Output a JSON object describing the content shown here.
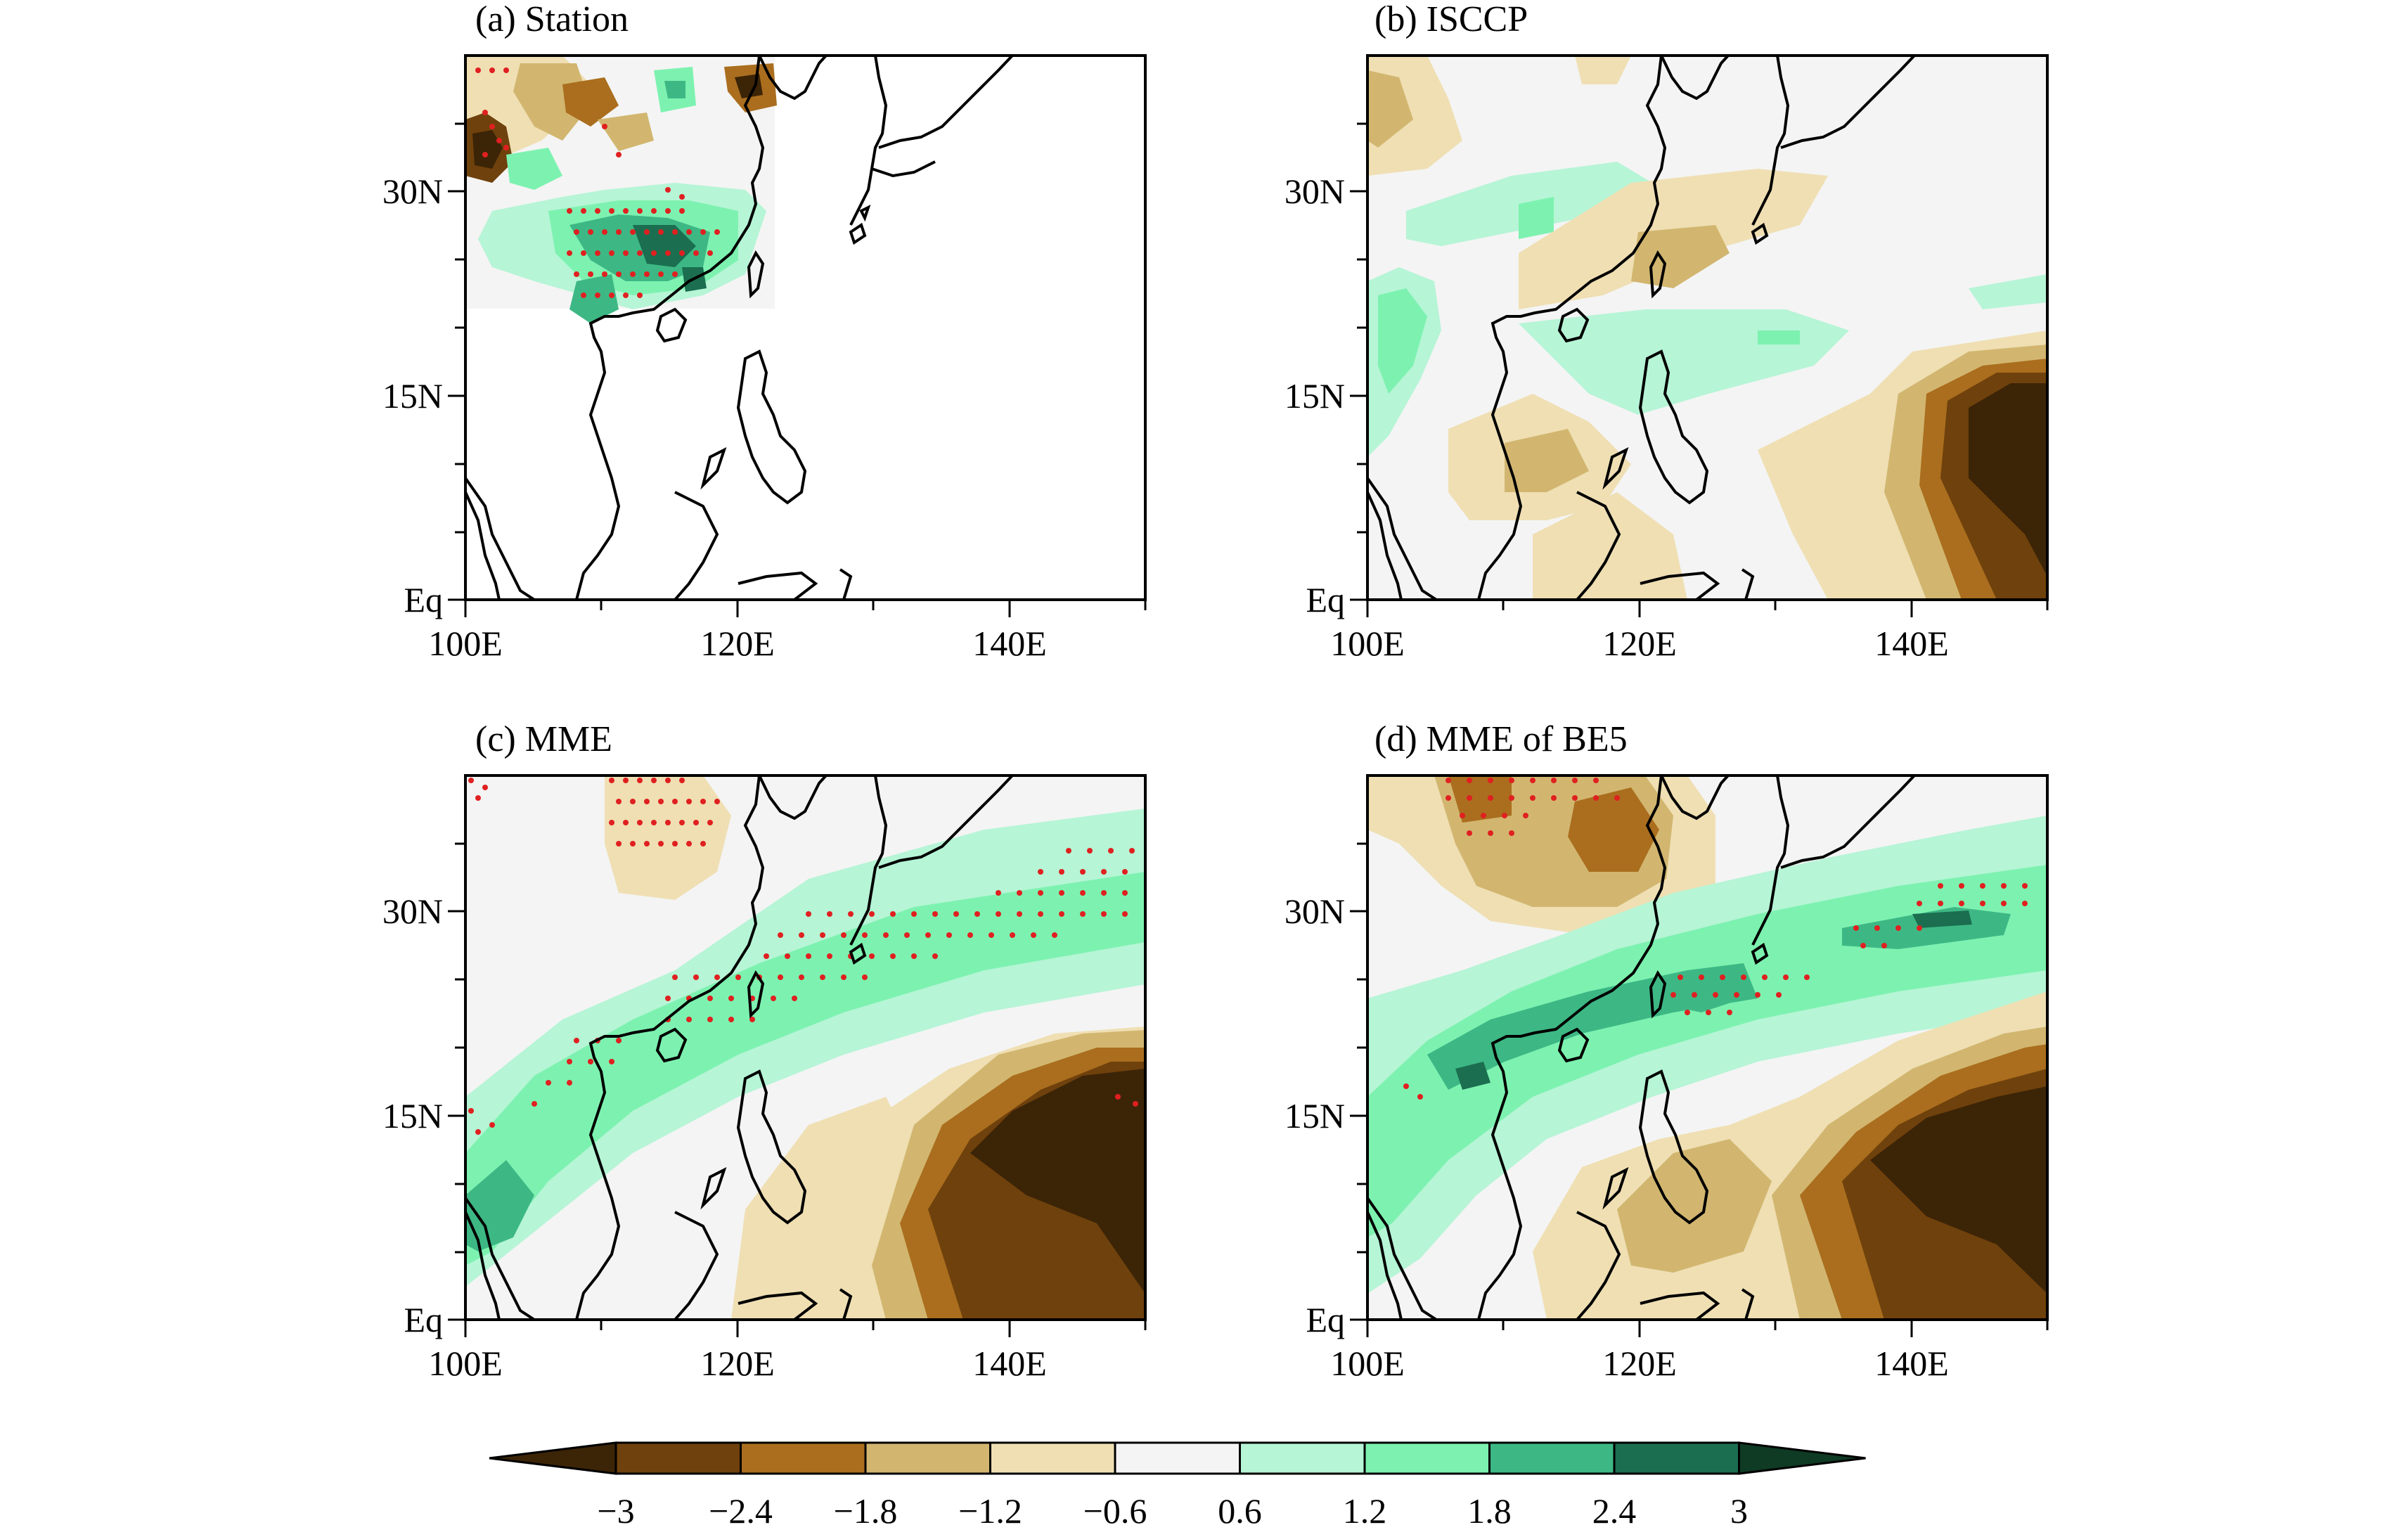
{
  "figure": {
    "panels": [
      {
        "id": "a",
        "title": "(a) Station"
      },
      {
        "id": "b",
        "title": "(b) ISCCP"
      },
      {
        "id": "c",
        "title": "(c) MME"
      },
      {
        "id": "d",
        "title": "(d) MME of BE5"
      }
    ],
    "lon_labels": [
      "100E",
      "120E",
      "140E"
    ],
    "lat_labels": [
      "30N",
      "15N",
      "Eq"
    ]
  },
  "chart_data": {
    "type": "contour-map",
    "region": {
      "lon_range": [
        100,
        150
      ],
      "lat_range": [
        0,
        40
      ]
    },
    "lon_ticks": [
      100,
      120,
      140
    ],
    "lat_ticks": [
      30,
      15,
      0
    ],
    "stippling": "red dots mark significant grid points",
    "colorbar": {
      "levels": [
        -3,
        -2.4,
        -1.8,
        -1.2,
        -0.6,
        0.6,
        1.2,
        1.8,
        2.4,
        3
      ],
      "labels": [
        "−3",
        "−2.4",
        "−1.8",
        "−1.2",
        "−0.6",
        "0.6",
        "1.2",
        "1.8",
        "2.4",
        "3"
      ],
      "colors": [
        "#3c2407",
        "#6f410c",
        "#aa6e1e",
        "#d2b670",
        "#efdfb3",
        "#f4f4f4",
        "#b6f5d6",
        "#7df2b0",
        "#3db885",
        "#1b6e4f",
        "#0f3a24"
      ]
    },
    "panels": [
      "(a) Station",
      "(b) ISCCP",
      "(c) MME",
      "(d) MME of BE5"
    ]
  }
}
